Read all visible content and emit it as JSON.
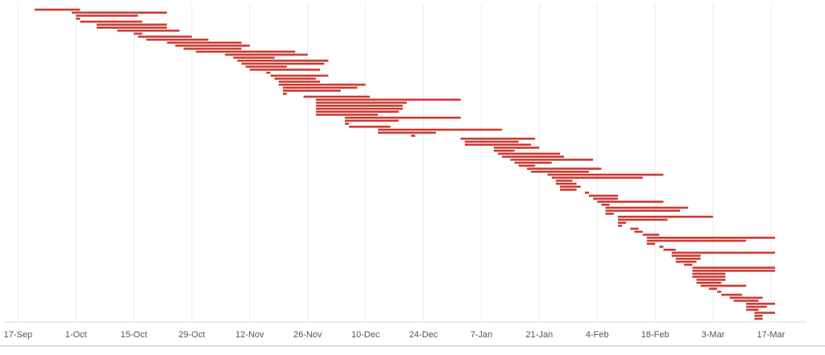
{
  "chart_data": {
    "type": "gantt",
    "color": "#cc3b33",
    "grid": true,
    "xlim": [
      -3,
      190
    ],
    "xticks": [
      {
        "value": 0,
        "label": "17-Sep"
      },
      {
        "value": 14,
        "label": "1-Oct"
      },
      {
        "value": 28,
        "label": "15-Oct"
      },
      {
        "value": 42,
        "label": "29-Oct"
      },
      {
        "value": 56,
        "label": "12-Nov"
      },
      {
        "value": 70,
        "label": "26-Nov"
      },
      {
        "value": 84,
        "label": "10-Dec"
      },
      {
        "value": 98,
        "label": "24-Dec"
      },
      {
        "value": 112,
        "label": "7-Jan"
      },
      {
        "value": 126,
        "label": "21-Jan"
      },
      {
        "value": 140,
        "label": "4-Feb"
      },
      {
        "value": 154,
        "label": "18-Feb"
      },
      {
        "value": 168,
        "label": "3-Mar"
      },
      {
        "value": 182,
        "label": "17-Mar"
      }
    ],
    "start": [
      4,
      13,
      14,
      14,
      15,
      19,
      19,
      24,
      28,
      29,
      31,
      36,
      38,
      40,
      43,
      50,
      52,
      53,
      54,
      55,
      56,
      60,
      61,
      62,
      63,
      63,
      64,
      64,
      64,
      69,
      72,
      72,
      72,
      72,
      72,
      72,
      79,
      79,
      79,
      80,
      87,
      87,
      95,
      107,
      108,
      108,
      115,
      115,
      116,
      117,
      119,
      120,
      121,
      123,
      124,
      128,
      129,
      130,
      130,
      131,
      131,
      137,
      138,
      139,
      140,
      141,
      142,
      142,
      142,
      145,
      145,
      145,
      145,
      148,
      149,
      151,
      152,
      152,
      152,
      155,
      156,
      158,
      158,
      159,
      159,
      161,
      163,
      163,
      163,
      163,
      164,
      164,
      165,
      167,
      169,
      170,
      172,
      173,
      176,
      176,
      176,
      178,
      178,
      178
    ],
    "end": [
      15,
      36,
      29,
      15,
      30,
      36,
      36,
      39,
      30,
      42,
      46,
      54,
      56,
      54,
      67,
      70,
      62,
      75,
      74,
      65,
      73,
      61,
      75,
      72,
      73,
      84,
      82,
      78,
      65,
      85,
      107,
      94,
      93,
      93,
      92,
      87,
      107,
      92,
      80,
      90,
      117,
      101,
      96,
      125,
      121,
      124,
      126,
      120,
      131,
      132,
      139,
      129,
      125,
      141,
      138,
      156,
      151,
      134,
      135,
      136,
      135,
      138,
      145,
      145,
      156,
      143,
      162,
      160,
      144,
      168,
      157,
      147,
      146,
      150,
      151,
      155,
      183,
      176,
      154,
      156,
      159,
      183,
      165,
      165,
      164,
      163,
      183,
      183,
      171,
      171,
      171,
      170,
      176,
      169,
      170,
      175,
      180,
      179,
      183,
      181,
      179,
      183,
      180,
      180
    ]
  }
}
